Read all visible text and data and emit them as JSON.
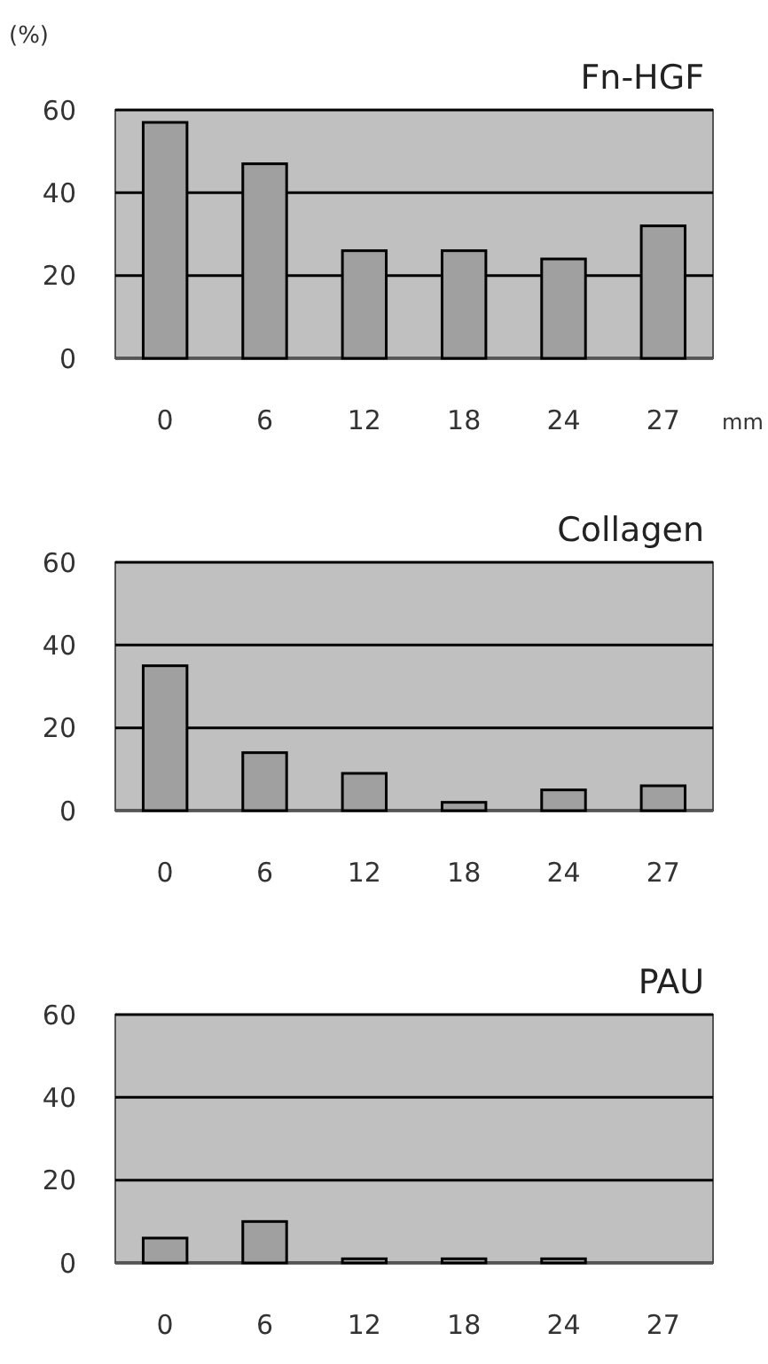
{
  "chart_data": [
    {
      "type": "bar",
      "title": "Fn-HGF",
      "ylabel": "(%)",
      "xlabel": "mm",
      "categories": [
        "0",
        "6",
        "12",
        "18",
        "24",
        "27"
      ],
      "values": [
        57,
        47,
        26,
        26,
        24,
        32
      ],
      "color": "#a0a0a0",
      "ylim": [
        0,
        60
      ],
      "yticks": [
        0,
        20,
        40,
        60
      ],
      "grid": "y"
    },
    {
      "type": "bar",
      "title": "Collagen",
      "categories": [
        "0",
        "6",
        "12",
        "18",
        "24",
        "27"
      ],
      "values": [
        35,
        14,
        9,
        2,
        5,
        6
      ],
      "color": "#a0a0a0",
      "ylim": [
        0,
        60
      ],
      "yticks": [
        0,
        20,
        40,
        60
      ],
      "grid": "y"
    },
    {
      "type": "bar",
      "title": "PAU",
      "categories": [
        "0",
        "6",
        "12",
        "18",
        "24",
        "27"
      ],
      "values": [
        6,
        10,
        1,
        1,
        1,
        0
      ],
      "color": "#a0a0a0",
      "ylim": [
        0,
        60
      ],
      "yticks": [
        0,
        20,
        40,
        60
      ],
      "grid": "y"
    }
  ]
}
